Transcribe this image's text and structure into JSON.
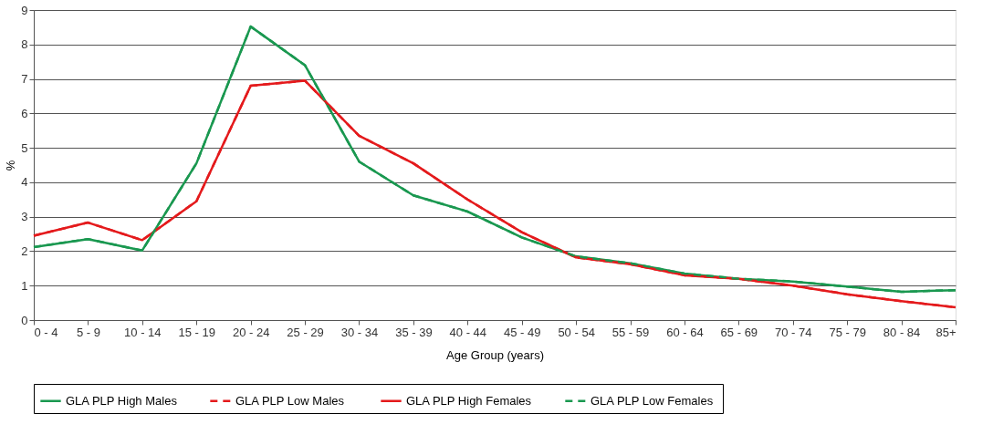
{
  "chart_data": {
    "type": "line",
    "xlabel": "Age Group (years)",
    "ylabel": "%",
    "categories": [
      "0 - 4",
      "5 - 9",
      "10 - 14",
      "15 - 19",
      "20 - 24",
      "25 - 29",
      "30 - 34",
      "35 - 39",
      "40 - 44",
      "45 - 49",
      "50 - 54",
      "55 - 59",
      "60 - 64",
      "65 - 69",
      "70 - 74",
      "75 - 79",
      "80 - 84",
      "85+"
    ],
    "series": [
      {
        "name": "GLA PLP High Males",
        "color": "#1a9850",
        "line_style": "solid",
        "values": [
          2.12,
          2.35,
          2.02,
          4.55,
          8.52,
          7.4,
          4.6,
          3.62,
          3.15,
          2.4,
          1.85,
          1.65,
          1.35,
          1.2,
          1.12,
          0.97,
          0.82,
          0.87
        ]
      },
      {
        "name": "GLA PLP Low  Males",
        "color": "#e41a1c",
        "line_style": "dashed",
        "values": [
          2.45,
          2.83,
          2.32,
          3.45,
          6.8,
          6.95,
          5.35,
          4.55,
          3.5,
          2.55,
          1.82,
          1.62,
          1.3,
          1.2,
          1.0,
          0.75,
          0.55,
          0.37
        ]
      },
      {
        "name": "GLA PLP High Females",
        "color": "#e41a1c",
        "line_style": "solid",
        "values": [
          2.45,
          2.83,
          2.32,
          3.45,
          6.8,
          6.95,
          5.35,
          4.55,
          3.5,
          2.55,
          1.82,
          1.62,
          1.3,
          1.2,
          1.0,
          0.75,
          0.55,
          0.37
        ]
      },
      {
        "name": "GLA PLP Low  Females",
        "color": "#1a9850",
        "line_style": "dashed",
        "values": [
          2.12,
          2.35,
          2.02,
          4.55,
          8.52,
          7.4,
          4.6,
          3.62,
          3.15,
          2.4,
          1.85,
          1.65,
          1.35,
          1.2,
          1.12,
          0.97,
          0.82,
          0.87
        ]
      }
    ],
    "ylim": [
      0,
      9
    ],
    "yticks": [
      0,
      1,
      2,
      3,
      4,
      5,
      6,
      7,
      8,
      9
    ],
    "grid": "y",
    "legend": "bottom",
    "marker": "none"
  }
}
